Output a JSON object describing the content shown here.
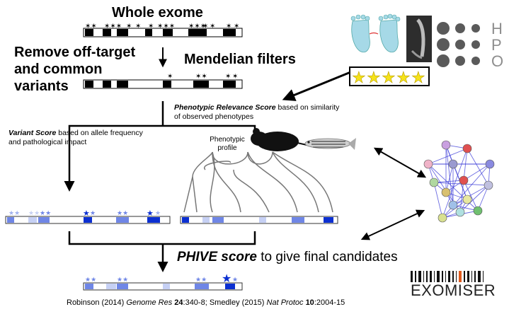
{
  "steps": {
    "whole_exome": "Whole exome",
    "remove_offtarget": [
      "Remove off-target",
      "and common",
      "variants"
    ],
    "mendelian_filters": "Mendelian filters"
  },
  "scores": {
    "phenotypic_relevance_name": "Phenotypic Relevance Score",
    "phenotypic_relevance_rest": " based on similarity of observed phenotypes",
    "variant_score_name": "Variant Score",
    "variant_score_rest": " based on allele frequency and pathological impact",
    "phenotypic_profile": [
      "Phenotypic",
      "profile"
    ],
    "phive_name": "PHIVE score",
    "phive_rest": " to give final candidates"
  },
  "hpo_letters": [
    "H",
    "P",
    "O"
  ],
  "logo_text": "EXOMISER",
  "rating_stars": 5,
  "colors": {
    "bar_dark": "#0b2fd1",
    "bar_mid": "#6f86e6",
    "bar_light": "#c6d0f4",
    "network_edge": "#3a3ad8"
  },
  "citation": {
    "authors1": "Robinson (2014) ",
    "journal1": "Genome Res",
    "vol1": "24",
    "pages1": ":340-8; Smedley (2015) ",
    "journal2": "Nat Protoc",
    "vol2": "10",
    "pages2": ":2004-15"
  }
}
